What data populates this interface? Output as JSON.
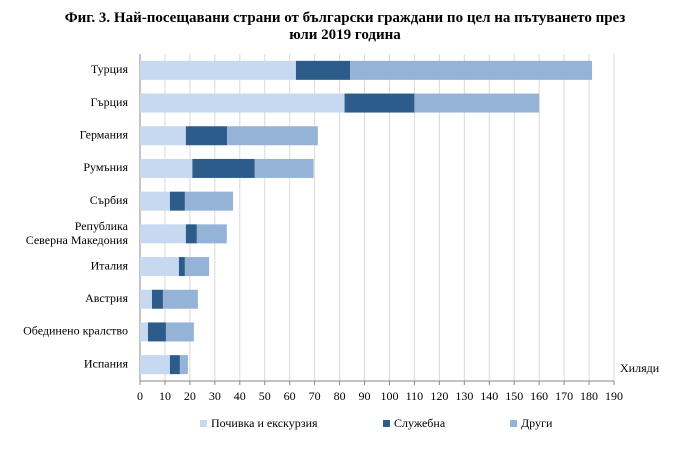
{
  "chart_data": {
    "type": "stacked_barh",
    "title": "Фиг. 3. Най-посещавани страни от български граждани по цел на пътуването през\nюли 2019 година",
    "x_label": "Хиляди",
    "categories": [
      "Турция",
      "Гърция",
      "Германия",
      "Румъния",
      "Сърбия",
      "Република\nСеверна Македония",
      "Италия",
      "Австрия",
      "Обединено кралство",
      "Испания"
    ],
    "series": [
      {
        "name": "Почивка и екскурзия",
        "color": "#c6d9f1",
        "values": [
          62.5,
          82,
          18.4,
          21,
          12,
          18.4,
          15.6,
          4.8,
          3.2,
          12
        ]
      },
      {
        "name": "Служебна",
        "color": "#2e5c8a",
        "values": [
          21.7,
          28,
          16.5,
          25,
          6,
          4.4,
          2.4,
          4.4,
          7.2,
          4
        ]
      },
      {
        "name": "Други",
        "color": "#95b3d7",
        "values": [
          97,
          50,
          36.4,
          23.6,
          19.3,
          12,
          9.7,
          14,
          11.2,
          3.2
        ]
      }
    ],
    "xlim": [
      0,
      190
    ],
    "xticks": [
      0,
      10,
      20,
      30,
      40,
      50,
      60,
      70,
      80,
      90,
      100,
      110,
      120,
      130,
      140,
      150,
      160,
      170,
      180,
      190
    ],
    "grid": true
  }
}
